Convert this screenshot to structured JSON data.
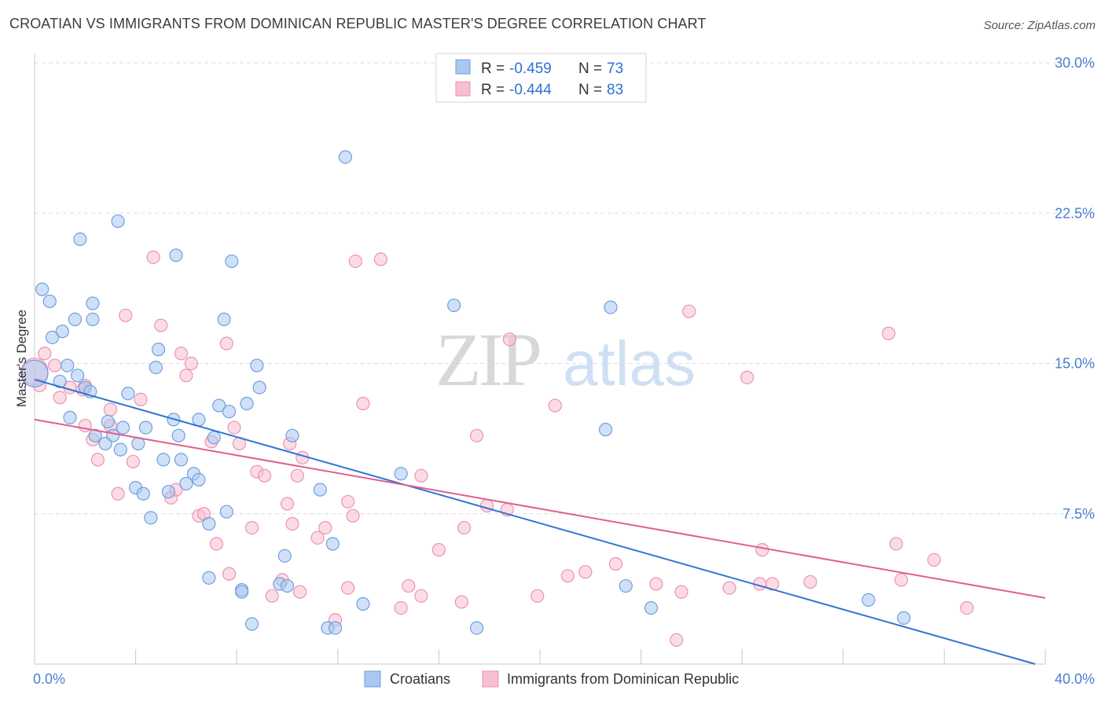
{
  "title": "CROATIAN VS IMMIGRANTS FROM DOMINICAN REPUBLIC MASTER'S DEGREE CORRELATION CHART",
  "source": "Source: ZipAtlas.com",
  "watermark": {
    "part1": "ZIP",
    "part2": "atlas"
  },
  "colors": {
    "blue_fill": "#a9c8f0",
    "blue_stroke": "#6f9fe0",
    "blue_line": "#2f74d0",
    "pink_fill": "#f7bfd0",
    "pink_stroke": "#ec93b0",
    "pink_line": "#e0608e",
    "tick_text": "#4a7fd0",
    "grid": "#dddddd"
  },
  "legend_top": [
    {
      "r_label": "R =",
      "r_value": "-0.459",
      "n_label": "N =",
      "n_value": "73"
    },
    {
      "r_label": "R =",
      "r_value": "-0.444",
      "n_label": "N =",
      "n_value": "83"
    }
  ],
  "chart_data": {
    "type": "scatter",
    "title": "CROATIAN VS IMMIGRANTS FROM DOMINICAN REPUBLIC MASTER'S DEGREE CORRELATION CHART",
    "xlabel": "",
    "ylabel": "Master's Degree",
    "xlim": [
      0,
      40
    ],
    "ylim": [
      0,
      30
    ],
    "x_tick_labels": [
      "0.0%",
      "40.0%"
    ],
    "y_ticks": [
      7.5,
      15.0,
      22.5,
      30.0
    ],
    "y_tick_labels": [
      "7.5%",
      "15.0%",
      "22.5%",
      "30.0%"
    ],
    "grid": "horizontal dashed",
    "legend": "top-center and bottom",
    "series": [
      {
        "name": "Croatians",
        "r": -0.459,
        "n": 73,
        "trend": {
          "x": [
            0,
            39.6
          ],
          "y": [
            14.2,
            0.0
          ]
        },
        "points": [
          [
            0.3,
            18.7
          ],
          [
            0.6,
            18.1
          ],
          [
            1.8,
            21.2
          ],
          [
            3.3,
            22.1
          ],
          [
            12.3,
            25.3
          ],
          [
            5.6,
            20.4
          ],
          [
            7.8,
            20.1
          ],
          [
            1.6,
            17.2
          ],
          [
            2.3,
            17.2
          ],
          [
            2.3,
            18.0
          ],
          [
            1.1,
            16.6
          ],
          [
            7.5,
            17.2
          ],
          [
            16.6,
            17.9
          ],
          [
            22.8,
            17.8
          ],
          [
            1.3,
            14.9
          ],
          [
            4.9,
            15.7
          ],
          [
            4.8,
            14.8
          ],
          [
            8.8,
            14.9
          ],
          [
            1.7,
            14.4
          ],
          [
            2.0,
            13.8
          ],
          [
            3.7,
            13.5
          ],
          [
            8.9,
            13.8
          ],
          [
            8.4,
            13.0
          ],
          [
            1.4,
            12.3
          ],
          [
            7.3,
            12.9
          ],
          [
            7.7,
            12.6
          ],
          [
            5.5,
            12.2
          ],
          [
            6.5,
            12.2
          ],
          [
            2.9,
            12.1
          ],
          [
            4.4,
            11.8
          ],
          [
            3.5,
            11.8
          ],
          [
            2.4,
            11.4
          ],
          [
            3.1,
            11.4
          ],
          [
            5.7,
            11.4
          ],
          [
            7.1,
            11.3
          ],
          [
            10.2,
            11.4
          ],
          [
            2.8,
            11.0
          ],
          [
            4.1,
            11.0
          ],
          [
            22.6,
            11.7
          ],
          [
            3.4,
            10.7
          ],
          [
            5.1,
            10.2
          ],
          [
            5.8,
            10.2
          ],
          [
            6.3,
            9.5
          ],
          [
            14.5,
            9.5
          ],
          [
            6.5,
            9.2
          ],
          [
            6.0,
            9.0
          ],
          [
            4.0,
            8.8
          ],
          [
            4.3,
            8.5
          ],
          [
            5.3,
            8.6
          ],
          [
            11.3,
            8.7
          ],
          [
            7.6,
            7.6
          ],
          [
            4.6,
            7.3
          ],
          [
            6.9,
            7.0
          ],
          [
            11.8,
            6.0
          ],
          [
            9.9,
            5.4
          ],
          [
            6.9,
            4.3
          ],
          [
            8.2,
            3.7
          ],
          [
            8.2,
            3.6
          ],
          [
            9.7,
            4.0
          ],
          [
            10.0,
            3.9
          ],
          [
            23.4,
            3.9
          ],
          [
            13.0,
            3.0
          ],
          [
            8.6,
            2.0
          ],
          [
            11.6,
            1.8
          ],
          [
            11.9,
            1.8
          ],
          [
            17.5,
            1.8
          ],
          [
            24.4,
            2.8
          ],
          [
            33.0,
            3.2
          ],
          [
            34.4,
            2.3
          ],
          [
            0.0,
            14.5
          ],
          [
            0.7,
            16.3
          ],
          [
            1.0,
            14.1
          ],
          [
            2.2,
            13.6
          ]
        ]
      },
      {
        "name": "Immigrants from Dominican Republic",
        "r": -0.444,
        "n": 83,
        "trend": {
          "x": [
            0,
            40
          ],
          "y": [
            12.2,
            3.3
          ]
        },
        "points": [
          [
            4.7,
            20.3
          ],
          [
            12.7,
            20.1
          ],
          [
            13.7,
            20.2
          ],
          [
            25.9,
            17.6
          ],
          [
            3.6,
            17.4
          ],
          [
            5.0,
            16.9
          ],
          [
            33.8,
            16.5
          ],
          [
            18.8,
            16.2
          ],
          [
            7.6,
            16.0
          ],
          [
            0.4,
            15.5
          ],
          [
            5.8,
            15.5
          ],
          [
            6.2,
            15.0
          ],
          [
            0.8,
            14.9
          ],
          [
            6.0,
            14.4
          ],
          [
            28.2,
            14.3
          ],
          [
            2.0,
            13.9
          ],
          [
            1.4,
            13.8
          ],
          [
            1.9,
            13.7
          ],
          [
            1.0,
            13.3
          ],
          [
            4.2,
            13.2
          ],
          [
            13.0,
            13.0
          ],
          [
            20.6,
            12.9
          ],
          [
            3.0,
            12.7
          ],
          [
            2.0,
            11.9
          ],
          [
            3.0,
            11.9
          ],
          [
            7.9,
            11.8
          ],
          [
            17.5,
            11.4
          ],
          [
            2.3,
            11.2
          ],
          [
            7.0,
            11.1
          ],
          [
            8.1,
            11.0
          ],
          [
            10.1,
            11.0
          ],
          [
            2.5,
            10.2
          ],
          [
            3.9,
            10.1
          ],
          [
            10.6,
            10.3
          ],
          [
            8.8,
            9.6
          ],
          [
            9.1,
            9.4
          ],
          [
            10.4,
            9.4
          ],
          [
            15.3,
            9.4
          ],
          [
            3.3,
            8.5
          ],
          [
            5.4,
            8.3
          ],
          [
            5.6,
            8.7
          ],
          [
            10.0,
            8.0
          ],
          [
            12.4,
            8.1
          ],
          [
            17.9,
            7.9
          ],
          [
            18.7,
            7.7
          ],
          [
            6.5,
            7.4
          ],
          [
            6.7,
            7.5
          ],
          [
            12.6,
            7.4
          ],
          [
            8.6,
            6.8
          ],
          [
            10.2,
            7.0
          ],
          [
            11.5,
            6.8
          ],
          [
            17.0,
            6.8
          ],
          [
            7.2,
            6.0
          ],
          [
            11.2,
            6.3
          ],
          [
            16.0,
            5.7
          ],
          [
            28.8,
            5.7
          ],
          [
            34.1,
            6.0
          ],
          [
            35.6,
            5.2
          ],
          [
            7.7,
            4.5
          ],
          [
            9.8,
            4.2
          ],
          [
            21.1,
            4.4
          ],
          [
            21.8,
            4.6
          ],
          [
            23.0,
            5.0
          ],
          [
            34.3,
            4.2
          ],
          [
            10.5,
            3.6
          ],
          [
            12.4,
            3.8
          ],
          [
            14.8,
            3.9
          ],
          [
            15.3,
            3.4
          ],
          [
            19.9,
            3.4
          ],
          [
            24.6,
            4.0
          ],
          [
            25.6,
            3.6
          ],
          [
            27.5,
            3.8
          ],
          [
            28.7,
            4.0
          ],
          [
            29.2,
            4.0
          ],
          [
            30.7,
            4.1
          ],
          [
            9.4,
            3.4
          ],
          [
            14.5,
            2.8
          ],
          [
            16.9,
            3.1
          ],
          [
            11.9,
            2.2
          ],
          [
            36.9,
            2.8
          ],
          [
            25.4,
            1.2
          ],
          [
            0.0,
            14.6
          ],
          [
            0.2,
            13.9
          ]
        ]
      }
    ]
  },
  "legend_bottom": [
    {
      "label": "Croatians"
    },
    {
      "label": "Immigrants from Dominican Republic"
    }
  ]
}
